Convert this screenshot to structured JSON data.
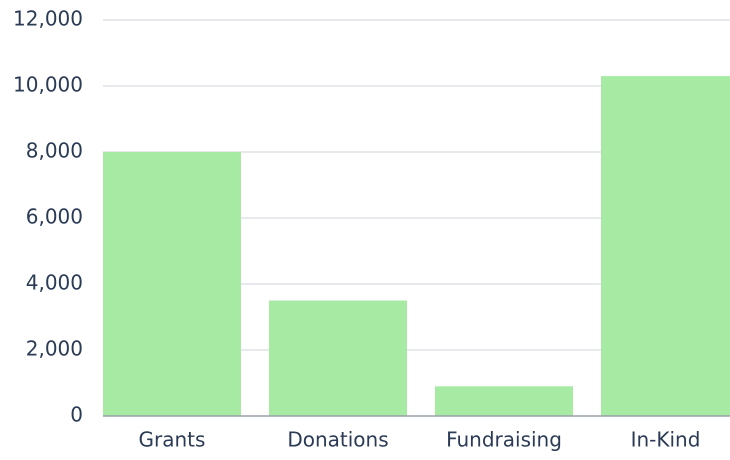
{
  "chart_data": {
    "type": "bar",
    "categories": [
      "Grants",
      "Donations",
      "Fundraising",
      "In-Kind"
    ],
    "values": [
      8000,
      3500,
      900,
      10300
    ],
    "color": "#a7eaa4",
    "ylim": [
      0,
      12000
    ],
    "yticks": [
      0,
      {
        "value": 2000,
        "label": "2,000"
      },
      {
        "value": 4000,
        "label": "4,000"
      },
      {
        "value": 6000,
        "label": "6,000"
      },
      {
        "value": 8000,
        "label": "8,000"
      },
      {
        "value": 10000,
        "label": "10,000"
      },
      {
        "value": 12000,
        "label": "12,000"
      }
    ],
    "grid": true
  }
}
